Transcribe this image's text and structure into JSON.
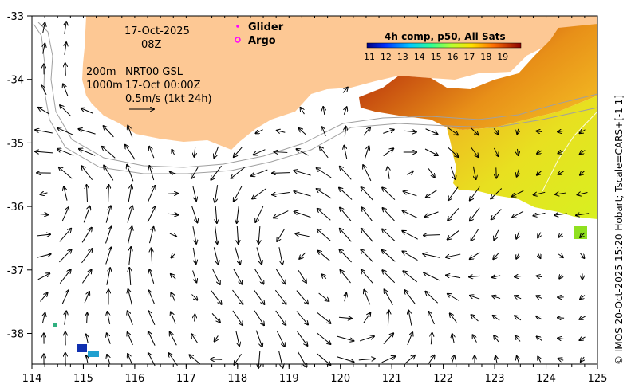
{
  "map": {
    "date": "17-Oct-2025",
    "hour": "08Z",
    "legend": {
      "glider": "Glider",
      "argo": "Argo"
    },
    "contours": {
      "c200": "200m",
      "c1000": "1000m"
    },
    "product": "NRT00 GSL",
    "product_time": "17-Oct 00:00Z",
    "scale_label": "0.5m/s (1kt 24h)",
    "colorbar": {
      "title": "4h comp, p50, All Sats",
      "ticks": [
        "11",
        "12",
        "13",
        "14",
        "15",
        "16",
        "17",
        "18",
        "19"
      ]
    },
    "credit": "© IMOS 20-Oct-2025 15:20 Hobart; Tscale=CARS+[-1 1]",
    "x_ticks": [
      "114",
      "115",
      "116",
      "117",
      "118",
      "119",
      "120",
      "121",
      "122",
      "123",
      "124",
      "125"
    ],
    "y_ticks": [
      "-33",
      "-34",
      "-35",
      "-36",
      "-37",
      "-38"
    ],
    "colors": {
      "land": "#fdc894",
      "high_temp": "#9a1a00",
      "mid_temp": "#e07a10",
      "low_temp": "#e6f020",
      "cool": "#1030b0"
    }
  }
}
